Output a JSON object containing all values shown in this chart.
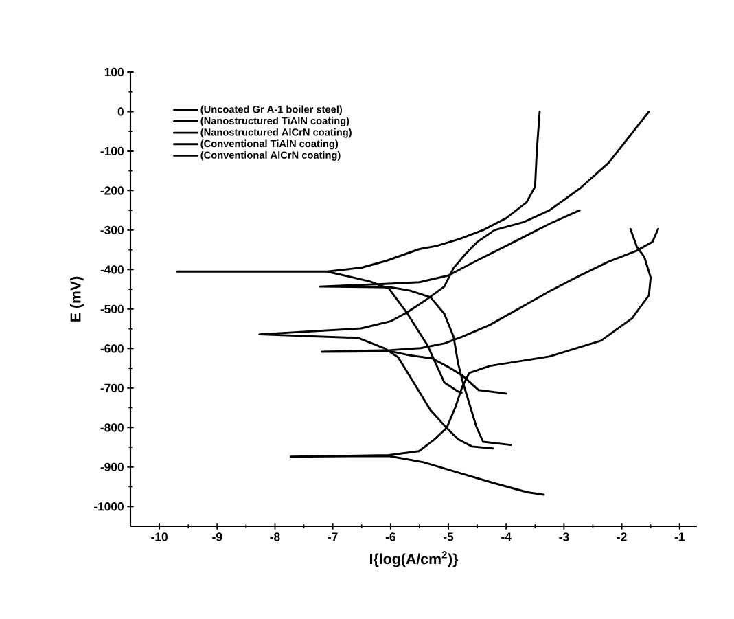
{
  "chart_data": {
    "type": "line",
    "xlabel": "I{log(A/cm$^{2}$)}",
    "ylabel": "E (mV)",
    "xlim": [
      -10.5,
      -0.7
    ],
    "ylim": [
      -1050,
      100
    ],
    "xticks": [
      -10,
      -9,
      -8,
      -7,
      -6,
      -5,
      -4,
      -3,
      -2,
      -1
    ],
    "yticks": [
      100,
      0,
      -100,
      -200,
      -300,
      -400,
      -500,
      -600,
      -700,
      -800,
      -900,
      -1000
    ],
    "legend": "top left",
    "series": [
      {
        "name": "(Uncoated Gr A-1 boiler steel)",
        "color": "#000000",
        "x": [
          -4.77,
          -4.83,
          -5.07,
          -5.36,
          -5.72,
          -6.03,
          -6.36,
          -7.1,
          -9.7,
          -7.1,
          -6.5,
          -6.08,
          -5.5,
          -5.2,
          -4.8,
          -4.4,
          -4.0,
          -3.65,
          -3.5,
          -3.47,
          -3.42
        ],
        "values": [
          -712,
          -709,
          -686,
          -592,
          -509,
          -448,
          -430,
          -405,
          -405,
          -405,
          -395,
          -378,
          -348,
          -340,
          -322,
          -300,
          -270,
          -230,
          -190,
          -100,
          0
        ]
      },
      {
        "name": "(Nanostructured TiAlN coating)",
        "color": "#000000",
        "x": [
          -3.92,
          -4.4,
          -4.52,
          -4.64,
          -4.75,
          -4.83,
          -4.91,
          -5.07,
          -5.31,
          -5.67,
          -6.0,
          -7.23,
          -6.03,
          -5.5,
          -5.0,
          -4.52,
          -4.0,
          -3.25,
          -2.73
        ],
        "values": [
          -844,
          -836,
          -796,
          -738,
          -685,
          -639,
          -570,
          -512,
          -470,
          -453,
          -445,
          -443,
          -436,
          -432,
          -415,
          -378,
          -340,
          -284,
          -250
        ]
      },
      {
        "name": "(Nanostructured AlCrN coating)",
        "color": "#000000",
        "x": [
          -4.23,
          -4.59,
          -4.83,
          -5.03,
          -5.31,
          -5.63,
          -5.87,
          -6.11,
          -6.56,
          -8.27,
          -6.51,
          -6.0,
          -5.72,
          -5.36,
          -5.07,
          -4.91,
          -4.7,
          -4.5,
          -4.2,
          -3.7,
          -3.25,
          -2.72,
          -2.23,
          -1.53
        ],
        "values": [
          -853,
          -848,
          -830,
          -801,
          -756,
          -679,
          -622,
          -599,
          -573,
          -564,
          -549,
          -531,
          -509,
          -474,
          -443,
          -396,
          -360,
          -330,
          -300,
          -280,
          -250,
          -194,
          -130,
          0
        ]
      },
      {
        "name": "(Conventional TiAlN coating)",
        "color": "#000000",
        "x": [
          -4.0,
          -4.48,
          -4.76,
          -4.95,
          -5.28,
          -5.67,
          -6.0,
          -7.19,
          -6.0,
          -5.48,
          -5.07,
          -4.76,
          -4.28,
          -3.25,
          -2.79,
          -2.23,
          -1.74,
          -1.47,
          -1.37
        ],
        "values": [
          -714,
          -705,
          -668,
          -651,
          -625,
          -617,
          -607,
          -608,
          -604,
          -599,
          -587,
          -570,
          -540,
          -455,
          -420,
          -380,
          -352,
          -330,
          -297
        ]
      },
      {
        "name": "(Conventional AlCrN coating)",
        "color": "#000000",
        "x": [
          -3.35,
          -3.63,
          -4.23,
          -4.83,
          -5.43,
          -6.03,
          -7.73,
          -6.03,
          -5.51,
          -5.24,
          -5.03,
          -4.88,
          -4.76,
          -4.64,
          -4.28,
          -3.25,
          -2.36,
          -1.82,
          -1.53,
          -1.5,
          -1.61,
          -1.74,
          -1.85
        ],
        "values": [
          -970,
          -964,
          -940,
          -914,
          -888,
          -872,
          -874,
          -870,
          -860,
          -830,
          -801,
          -749,
          -697,
          -662,
          -644,
          -620,
          -580,
          -523,
          -465,
          -420,
          -368,
          -342,
          -297
        ]
      }
    ]
  }
}
